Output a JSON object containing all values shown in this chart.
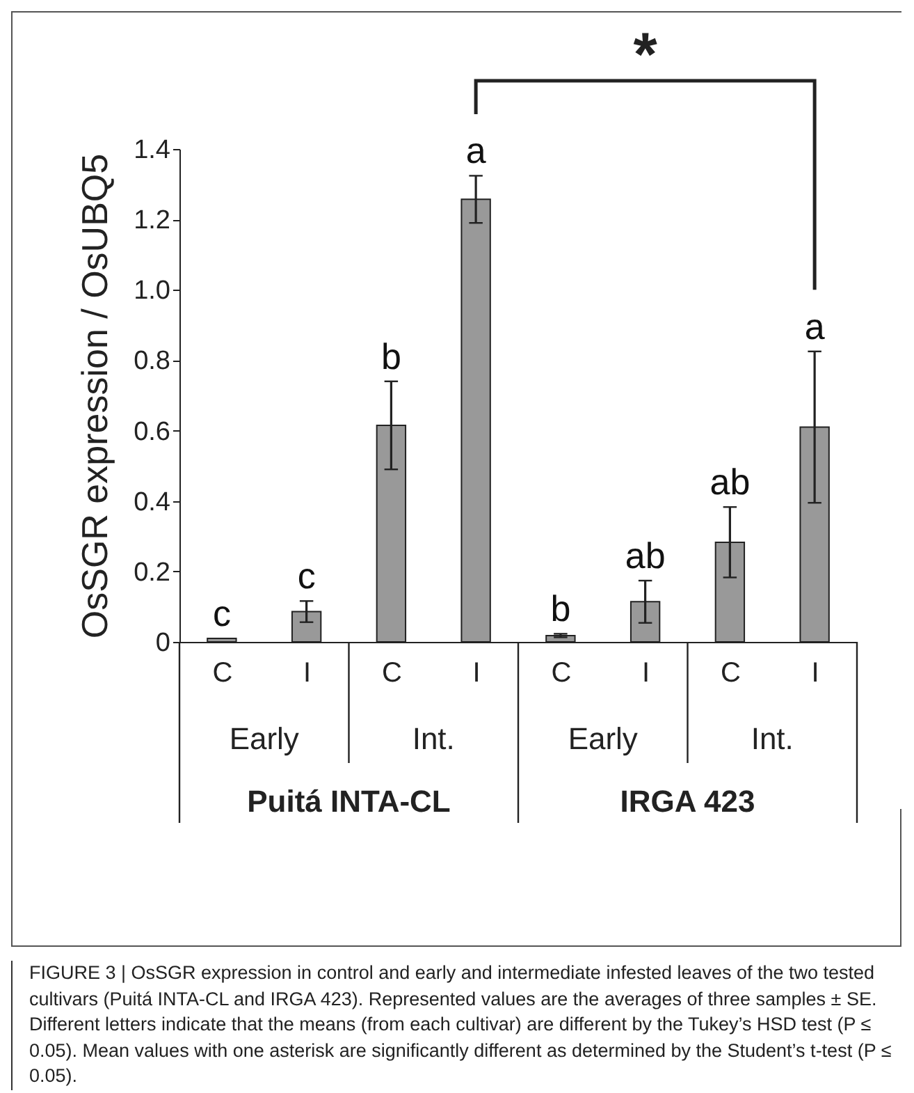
{
  "chart_data": {
    "type": "bar",
    "ylabel": "OsSGR expression / OsUBQ5",
    "categories": [
      "C",
      "I",
      "C",
      "I",
      "C",
      "I",
      "C",
      "I"
    ],
    "values": [
      0.01,
      0.086,
      0.615,
      1.257,
      0.018,
      0.114,
      0.283,
      0.61
    ],
    "errors": [
      null,
      0.03,
      0.125,
      0.067,
      0.005,
      0.06,
      0.1,
      0.215
    ],
    "value_labels": [
      "c",
      "c",
      "b",
      "a",
      "b",
      "ab",
      "ab",
      "a"
    ],
    "color": "#999999",
    "ylim": [
      0,
      1.4
    ],
    "yticks": [
      {
        "value": 0,
        "label": "0"
      },
      0.2,
      0.4,
      0.6,
      0.8,
      {
        "value": 1,
        "label": "1.0"
      },
      1.2,
      1.4
    ],
    "grid": false,
    "annotations": [
      "*",
      "Early",
      "Int.",
      "Early",
      "Int.",
      "Puitá INTA-CL",
      "IRGA 423",
      "FIGURE 3 | OsSGR expression in control and early and intermediate infested leaves of the two tested cultivars (Puitá INTA-CL and IRGA 423). Represented values are the averages of three samples ± SE. Different letters indicate that the means (from each cultivar) are different by the Tukey’s HSD test (P ≤ 0.05). Mean values with one asterisk are significantly different as determined by the Student’s t-test (P ≤ 0.05)."
    ]
  }
}
